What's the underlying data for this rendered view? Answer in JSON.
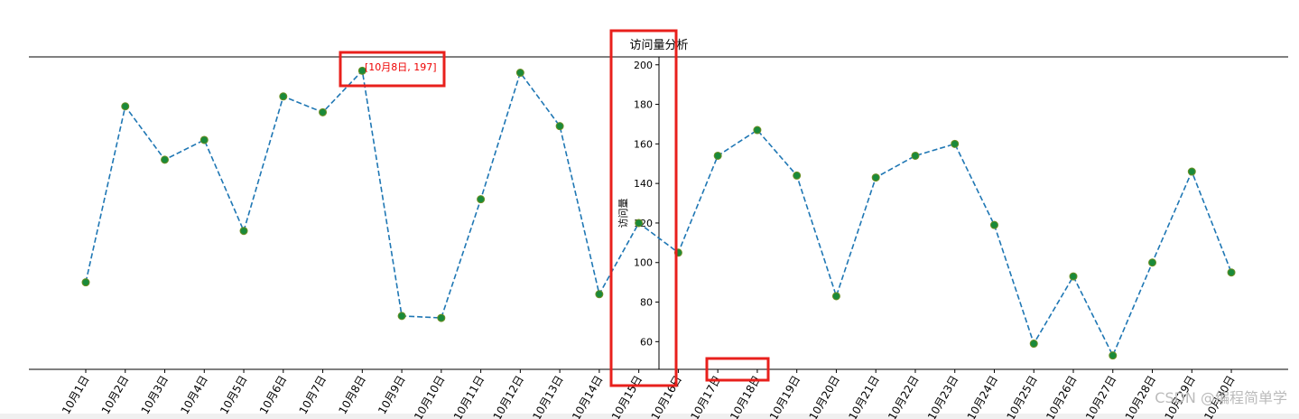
{
  "chart_data": {
    "type": "line",
    "title": "访问量分析",
    "y_label": "访问量",
    "annotation": "[10月8日, 197]",
    "watermark": "CSDN @编程简单学",
    "categories": [
      "10月1日",
      "10月2日",
      "10月3日",
      "10月4日",
      "10月5日",
      "10月6日",
      "10月7日",
      "10月8日",
      "10月9日",
      "10月10日",
      "10月11日",
      "10月12日",
      "10月13日",
      "10月14日",
      "10月15日",
      "10月16日",
      "10月17日",
      "10月18日",
      "10月19日",
      "10月20日",
      "10月21日",
      "10月22日",
      "10月23日",
      "10月24日",
      "10月25日",
      "10月26日",
      "10月27日",
      "10月28日",
      "10月29日",
      "10月30日"
    ],
    "values": [
      90,
      179,
      152,
      162,
      116,
      184,
      176,
      197,
      73,
      72,
      132,
      196,
      169,
      84,
      120,
      105,
      154,
      167,
      144,
      83,
      143,
      154,
      160,
      119,
      59,
      93,
      53,
      100,
      146,
      95
    ],
    "color": "#1f77b4",
    "marker_color": "#1a8a3a",
    "line_style": "dashed",
    "ylim": [
      46,
      204
    ],
    "yticks": [
      60,
      80,
      100,
      120,
      140,
      160,
      180,
      200
    ]
  }
}
